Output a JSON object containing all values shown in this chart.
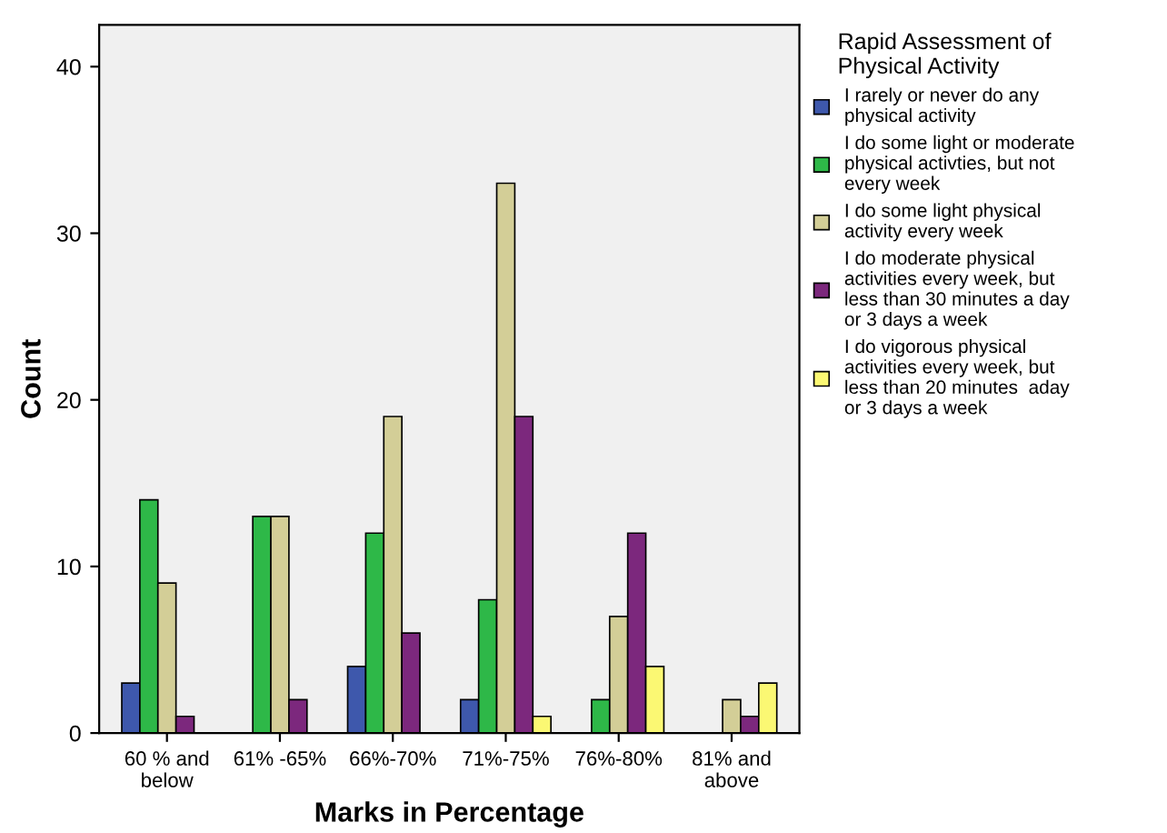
{
  "chart_data": {
    "type": "bar",
    "xlabel": "Marks in Percentage",
    "ylabel": "Count",
    "legend_title": "Rapid Assessment of\nPhysical Activity",
    "categories": [
      "60 % and\nbelow",
      "61% -65%",
      "66%-70%",
      "71%-75%",
      "76%-80%",
      "81% and\nabove"
    ],
    "series": [
      {
        "name": "I rarely or never do any\nphysical activity",
        "color": "#3e58ac",
        "values": [
          3,
          null,
          4,
          2,
          null,
          null
        ]
      },
      {
        "name": "I do some light or moderate\nphysical activties, but not\nevery week",
        "color": "#2eb848",
        "values": [
          14,
          13,
          12,
          8,
          2,
          null
        ]
      },
      {
        "name": "I do some light physical\nactivity every week",
        "color": "#d3ce97",
        "values": [
          9,
          13,
          19,
          33,
          7,
          2
        ]
      },
      {
        "name": "I do moderate physical\nactivities every week, but\nless than 30 minutes a day\nor 3 days a week",
        "color": "#7c287d",
        "values": [
          1,
          2,
          6,
          19,
          12,
          1
        ]
      },
      {
        "name": "I do vigorous physical\nactivities every week, but\nless than 20 minutes  aday\nor 3 days a week",
        "color": "#fbf873",
        "values": [
          null,
          null,
          null,
          1,
          4,
          3
        ]
      }
    ],
    "ylim": [
      0,
      42.5
    ],
    "yticks": [
      0,
      10,
      20,
      30,
      40
    ],
    "grid": false,
    "legend": "right"
  }
}
